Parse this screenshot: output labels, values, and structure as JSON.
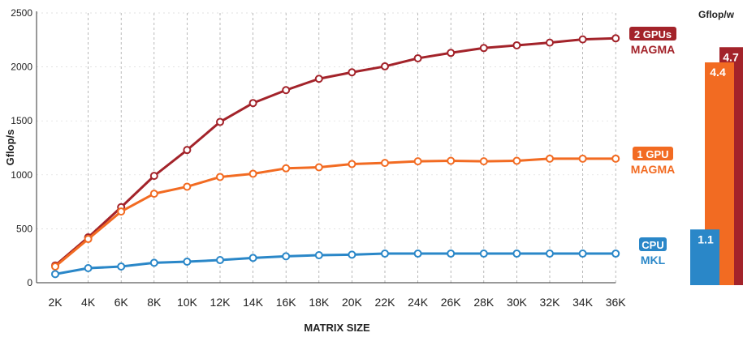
{
  "chart_data": [
    {
      "type": "line",
      "title": "",
      "xlabel": "MATRIX SIZE",
      "ylabel": "Gflop/s",
      "ylim": [
        0,
        2500
      ],
      "yticks": [
        "0",
        "500",
        "1000",
        "1500",
        "2000",
        "2500"
      ],
      "categories": [
        "2K",
        "4K",
        "6K",
        "8K",
        "10K",
        "12K",
        "14K",
        "16K",
        "18K",
        "20K",
        "22K",
        "24K",
        "26K",
        "28K",
        "30K",
        "32K",
        "34K",
        "36K"
      ],
      "grid": "vertical dashed",
      "series": [
        {
          "name": "2 GPUs",
          "sublabel": "MAGMA",
          "color": "#a3232a",
          "values": [
            160,
            420,
            700,
            990,
            1230,
            1490,
            1665,
            1785,
            1890,
            1950,
            2005,
            2080,
            2130,
            2175,
            2200,
            2225,
            2255,
            2265
          ]
        },
        {
          "name": "1 GPU",
          "sublabel": "MAGMA",
          "color": "#f26b22",
          "values": [
            150,
            405,
            660,
            825,
            890,
            980,
            1010,
            1060,
            1070,
            1100,
            1110,
            1125,
            1130,
            1125,
            1130,
            1150,
            1150,
            1150
          ]
        },
        {
          "name": "CPU",
          "sublabel": "MKL",
          "color": "#2a87c8",
          "values": [
            80,
            135,
            150,
            185,
            195,
            210,
            230,
            245,
            255,
            260,
            270,
            270,
            270,
            270,
            270,
            270,
            270,
            270
          ]
        }
      ]
    },
    {
      "type": "bar",
      "title": "Gflop/w",
      "categories": [
        "CPU",
        "1 GPU",
        "2 GPUs"
      ],
      "values": [
        1.1,
        4.4,
        4.7
      ],
      "labels": [
        "1.1",
        "4.4",
        "4.7"
      ],
      "colors": [
        "#2a87c8",
        "#f26b22",
        "#a3232a"
      ]
    }
  ]
}
